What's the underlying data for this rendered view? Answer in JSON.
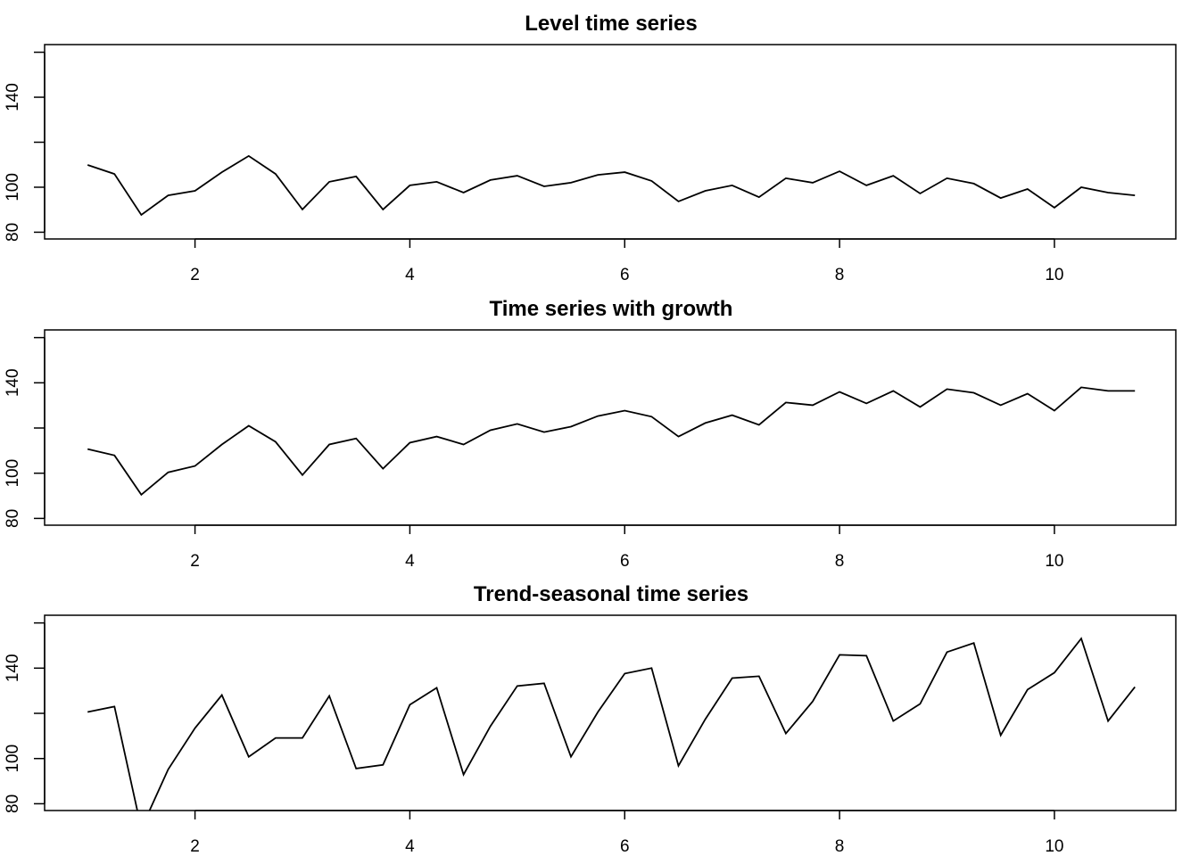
{
  "chart_data": [
    {
      "type": "line",
      "title": "Level time series",
      "xlabel": "",
      "ylabel": "",
      "xlim": [
        0.6,
        11.13
      ],
      "ylim": [
        77,
        163.4
      ],
      "xticks": [
        2,
        4,
        6,
        8,
        10
      ],
      "yticks": [
        80,
        100,
        120,
        140,
        160
      ],
      "ytick_labels": [
        "80",
        "100",
        "",
        "140",
        ""
      ],
      "x": [
        1,
        1.25,
        1.5,
        1.75,
        2,
        2.25,
        2.5,
        2.75,
        3,
        3.25,
        3.5,
        3.75,
        4,
        4.25,
        4.5,
        4.75,
        5,
        5.25,
        5.5,
        5.75,
        6,
        6.25,
        6.5,
        6.75,
        7,
        7.25,
        7.5,
        7.75,
        8,
        8.25,
        8.5,
        8.75,
        9,
        9.25,
        9.5,
        9.75,
        10,
        10.25,
        10.5,
        10.75
      ],
      "values": [
        109.9,
        105.9,
        87.7,
        96.4,
        98.4,
        106.7,
        113.9,
        105.9,
        90.1,
        102.4,
        104.8,
        90.1,
        100.8,
        102.4,
        97.6,
        103.2,
        105.1,
        100.4,
        102,
        105.5,
        106.7,
        102.8,
        93.7,
        98.4,
        100.8,
        95.6,
        104,
        102,
        107.1,
        100.8,
        105.1,
        97.2,
        104,
        101.6,
        95.2,
        99.2,
        90.9,
        100,
        97.6,
        96.4
      ]
    },
    {
      "type": "line",
      "title": "Time series with growth",
      "xlabel": "",
      "ylabel": "",
      "xlim": [
        0.6,
        11.13
      ],
      "ylim": [
        77,
        163.4
      ],
      "xticks": [
        2,
        4,
        6,
        8,
        10
      ],
      "yticks": [
        80,
        100,
        120,
        140,
        160
      ],
      "ytick_labels": [
        "80",
        "100",
        "",
        "140",
        ""
      ],
      "x": [
        1,
        1.25,
        1.5,
        1.75,
        2,
        2.25,
        2.5,
        2.75,
        3,
        3.25,
        3.5,
        3.75,
        4,
        4.25,
        4.5,
        4.75,
        5,
        5.25,
        5.5,
        5.75,
        6,
        6.25,
        6.5,
        6.75,
        7,
        7.25,
        7.5,
        7.75,
        8,
        8.25,
        8.5,
        8.75,
        9,
        9.25,
        9.5,
        9.75,
        10,
        10.25,
        10.5,
        10.75
      ],
      "values": [
        110.7,
        107.9,
        90.5,
        100.4,
        103.2,
        112.7,
        121,
        113.9,
        99.2,
        112.7,
        115.4,
        102,
        113.5,
        116.2,
        112.7,
        119,
        121.8,
        118.2,
        120.6,
        125.3,
        127.7,
        125,
        116.2,
        122.2,
        125.7,
        121.4,
        131.3,
        130.1,
        136,
        130.9,
        136.4,
        129.3,
        137.2,
        135.6,
        130.1,
        135.2,
        127.7,
        138,
        136.4,
        136.4
      ]
    },
    {
      "type": "line",
      "title": "Trend-seasonal time series",
      "xlabel": "",
      "ylabel": "",
      "xlim": [
        0.6,
        11.13
      ],
      "ylim": [
        77,
        163.4
      ],
      "xticks": [
        2,
        4,
        6,
        8,
        10
      ],
      "yticks": [
        80,
        100,
        120,
        140,
        160
      ],
      "ytick_labels": [
        "80",
        "100",
        "",
        "140",
        ""
      ],
      "x": [
        1,
        1.25,
        1.5,
        1.75,
        2,
        2.25,
        2.5,
        2.75,
        3,
        3.25,
        3.5,
        3.75,
        4,
        4.25,
        4.5,
        4.75,
        5,
        5.25,
        5.5,
        5.75,
        6,
        6.25,
        6.5,
        6.75,
        7,
        7.25,
        7.5,
        7.75,
        8,
        8.25,
        8.5,
        8.75,
        9,
        9.25,
        9.5,
        9.75,
        10,
        10.25,
        10.5,
        10.75
      ],
      "values": [
        120.6,
        123,
        69,
        95.2,
        113.5,
        128.1,
        100.8,
        109.1,
        109.1,
        127.7,
        95.6,
        97.2,
        123.8,
        131.3,
        92.9,
        114.3,
        132.1,
        133.3,
        100.8,
        120.6,
        137.6,
        140,
        96.8,
        117.4,
        135.6,
        136.4,
        111.1,
        125.3,
        145.9,
        145.5,
        116.6,
        124.2,
        147.1,
        151.1,
        110.3,
        130.5,
        138,
        153.1,
        116.6,
        131.7
      ]
    }
  ]
}
